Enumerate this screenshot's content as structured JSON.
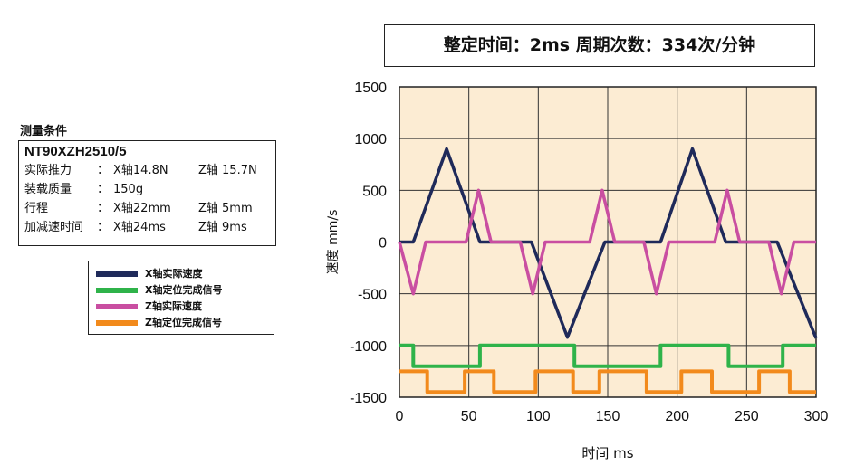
{
  "conditions": {
    "heading": "测量条件",
    "model": "NT90XZH2510/5",
    "rows": [
      {
        "label": "实际推力",
        "colon": "：",
        "v1": "X轴14.8N",
        "v2": "Z轴 15.7N"
      },
      {
        "label": "装载质量",
        "colon": "：",
        "v1": "150g",
        "v2": ""
      },
      {
        "label": "行程",
        "colon": "：",
        "v1": "X轴22mm",
        "v2": "Z轴 5mm"
      },
      {
        "label": "加减速时间",
        "colon": "：",
        "v1": "X轴24ms",
        "v2": "Z轴 9ms"
      }
    ]
  },
  "header": {
    "text": "整定时间：2ms 周期次数：334次/分钟"
  },
  "colors": {
    "x_speed": "#1f2a5a",
    "x_signal": "#2fb34a",
    "z_speed": "#c94ea1",
    "z_signal": "#f28a1c",
    "plot_bg": "#fcecd3"
  },
  "chart_data": {
    "type": "line",
    "xlabel": "时间 ms",
    "ylabel": "速度 mm/s",
    "xlim": [
      0,
      300
    ],
    "ylim": [
      -1500,
      1500
    ],
    "xticks": [
      0,
      50,
      100,
      150,
      200,
      250,
      300
    ],
    "yticks": [
      1500,
      1000,
      500,
      0,
      -500,
      -1000,
      -1500
    ],
    "grid": true,
    "legend_position": "left of plot",
    "series": [
      {
        "name": "X轴实际速度",
        "color": "#1f2a5a",
        "x": [
          0,
          10,
          34,
          58,
          95,
          121,
          148,
          188,
          211,
          235,
          272,
          300
        ],
        "y": [
          0,
          0,
          900,
          0,
          0,
          -920,
          0,
          0,
          900,
          0,
          0,
          -930
        ]
      },
      {
        "name": "X轴定位完成信号",
        "color": "#2fb34a",
        "x": [
          0,
          10,
          10,
          58,
          58,
          126,
          126,
          188,
          188,
          237,
          237,
          276,
          276,
          300
        ],
        "y": [
          -1000,
          -1000,
          -1200,
          -1200,
          -1000,
          -1000,
          -1200,
          -1200,
          -1000,
          -1000,
          -1200,
          -1200,
          -1000,
          -1000
        ]
      },
      {
        "name": "Z轴实际速度",
        "color": "#c94ea1",
        "x": [
          0,
          10,
          19,
          48,
          57,
          66,
          87,
          96,
          105,
          137,
          146,
          155,
          176,
          185,
          194,
          227,
          236,
          245,
          266,
          275,
          284,
          300
        ],
        "y": [
          0,
          -500,
          0,
          0,
          500,
          0,
          0,
          -500,
          0,
          0,
          500,
          0,
          0,
          -500,
          0,
          0,
          500,
          0,
          0,
          -500,
          0,
          0
        ]
      },
      {
        "name": "Z轴定位完成信号",
        "color": "#f28a1c",
        "x": [
          0,
          20,
          20,
          47,
          47,
          68,
          68,
          98,
          98,
          125,
          125,
          144,
          144,
          178,
          178,
          203,
          203,
          225,
          225,
          259,
          259,
          281,
          281,
          300
        ],
        "y": [
          -1250,
          -1250,
          -1450,
          -1450,
          -1250,
          -1250,
          -1450,
          -1450,
          -1250,
          -1250,
          -1450,
          -1450,
          -1250,
          -1250,
          -1450,
          -1450,
          -1250,
          -1250,
          -1450,
          -1450,
          -1250,
          -1250,
          -1450,
          -1450
        ]
      }
    ]
  }
}
